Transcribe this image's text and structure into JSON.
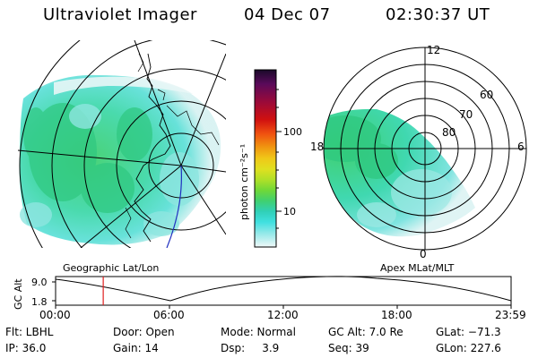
{
  "header": {
    "title": "Ultraviolet Imager",
    "date": "04 Dec 07",
    "time": "02:30:37 UT"
  },
  "left_panel": {
    "label": "Geographic Lat/Lon"
  },
  "right_panel": {
    "label": "Apex MLat/MLT",
    "mlt_labels": [
      "12",
      "18",
      "6",
      "0"
    ],
    "mlat_labels": [
      "60",
      "70",
      "80"
    ]
  },
  "colorbar": {
    "unit_label": "photon cm⁻²s⁻¹",
    "tick_labels": [
      "100",
      "10"
    ],
    "colors": [
      "#1a0a2a",
      "#5a0a5a",
      "#9a0a3a",
      "#d01010",
      "#f05010",
      "#f09010",
      "#f0c818",
      "#e0e020",
      "#b0e028",
      "#70d838",
      "#40d070",
      "#30d0b8",
      "#40e0e0",
      "#90e8e8",
      "#d0f0f0",
      "#f0f8f8"
    ]
  },
  "altitude_plot": {
    "ylabel": "GC Alt",
    "y_ticks": [
      "9.0",
      "1.8"
    ],
    "x_ticks": [
      "00:00",
      "06:00",
      "12:00",
      "18:00",
      "23:59"
    ],
    "current_time_hours": 2.51
  },
  "info": {
    "filter": "Flt: LBHL",
    "ip": "IP: 36.0",
    "door": "Door: Open",
    "gain": "Gain: 14",
    "mode": "Mode: Normal",
    "dsp": "Dsp:     3.9",
    "gc_alt": "GC Alt: 7.0 Re",
    "seq": "Seq: 39",
    "glat": "GLat: −71.3",
    "glon": "GLon: 227.6"
  }
}
